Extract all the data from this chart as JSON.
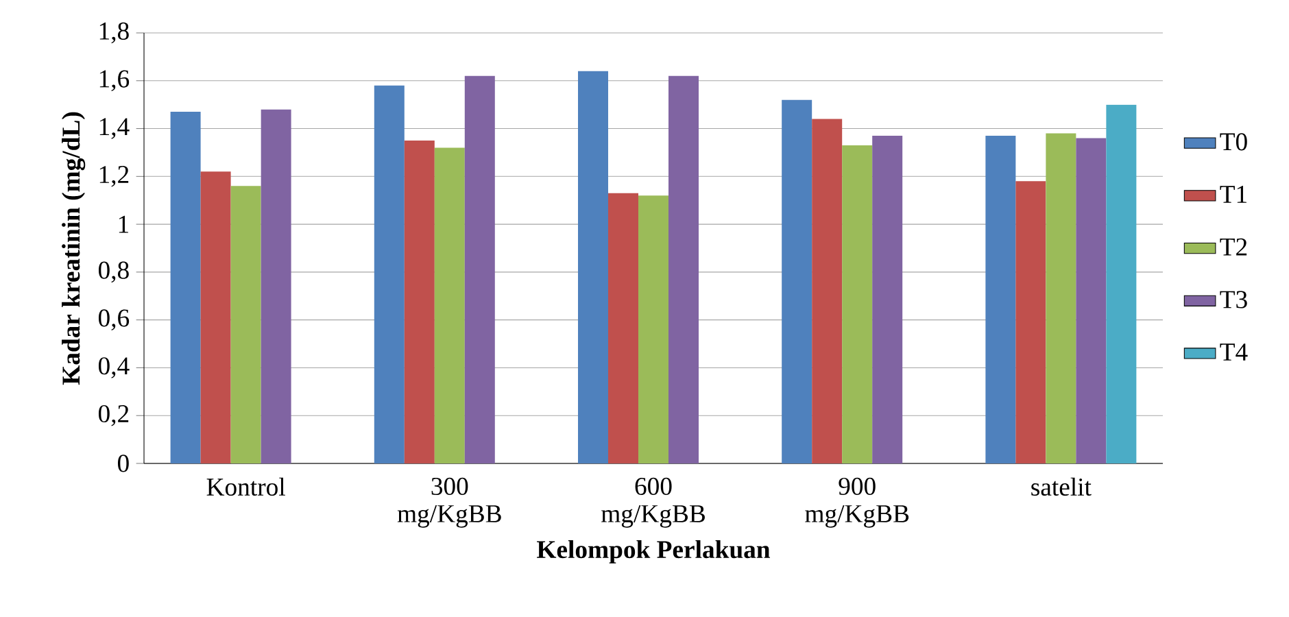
{
  "chart_data": {
    "type": "bar",
    "xlabel": "Kelompok Perlakuan",
    "ylabel": "Kadar kreatinin (mg/dL)",
    "categories": [
      "Kontrol",
      "300 mg/KgBB",
      "600 mg/KgBB",
      "900 mg/KgBB",
      "satelit"
    ],
    "series": [
      {
        "name": "T0",
        "color": "#4f81bd",
        "values": [
          1.47,
          1.58,
          1.64,
          1.52,
          1.37
        ]
      },
      {
        "name": "T1",
        "color": "#c0504d",
        "values": [
          1.22,
          1.35,
          1.13,
          1.44,
          1.18
        ]
      },
      {
        "name": "T2",
        "color": "#9bbb59",
        "values": [
          1.16,
          1.32,
          1.12,
          1.33,
          1.38
        ]
      },
      {
        "name": "T3",
        "color": "#8064a2",
        "values": [
          1.48,
          1.62,
          1.62,
          1.37,
          1.36
        ]
      },
      {
        "name": "T4",
        "color": "#4bacc6",
        "values": [
          null,
          null,
          null,
          null,
          1.5
        ]
      }
    ],
    "ylim": [
      0,
      1.8
    ],
    "yticks": [
      0,
      {
        "value": 0.2,
        "label": "0,2"
      },
      {
        "value": 0.4,
        "label": "0,4"
      },
      {
        "value": 0.6,
        "label": "0,6"
      },
      {
        "value": 0.8,
        "label": "0,8"
      },
      1,
      {
        "value": 1.2,
        "label": "1,2"
      },
      {
        "value": 1.4,
        "label": "1,4"
      },
      {
        "value": 1.6,
        "label": "1,6"
      },
      {
        "value": 1.8,
        "label": "1,8"
      }
    ],
    "grid": "y",
    "legend": "right"
  }
}
